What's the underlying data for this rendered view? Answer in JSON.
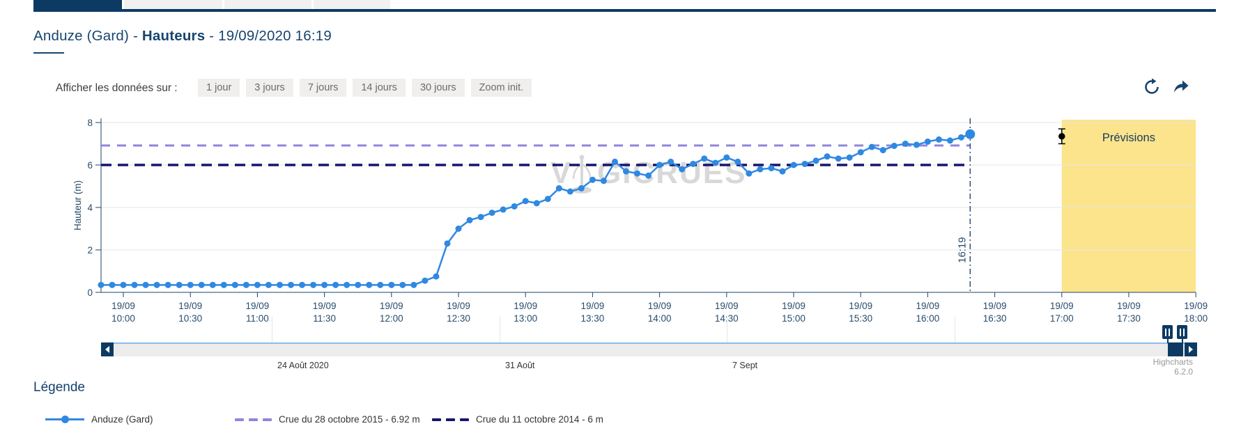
{
  "header": {
    "title_prefix": "Anduze (Gard) - ",
    "title_bold": "Hauteurs",
    "title_suffix": " - 19/09/2020 16:19"
  },
  "controls": {
    "label": "Afficher les données sur :",
    "buttons": [
      "1 jour",
      "3 jours",
      "7 jours",
      "14 jours",
      "30 jours",
      "Zoom init."
    ]
  },
  "chart_data": {
    "type": "line",
    "title": "",
    "ylabel": "Hauteur (m)",
    "ylim": [
      0,
      8
    ],
    "yticks": [
      0,
      2,
      4,
      6,
      8
    ],
    "grid": true,
    "xticks": [
      {
        "d": "19/09",
        "t": "10:00"
      },
      {
        "d": "19/09",
        "t": "10:30"
      },
      {
        "d": "19/09",
        "t": "11:00"
      },
      {
        "d": "19/09",
        "t": "11:30"
      },
      {
        "d": "19/09",
        "t": "12:00"
      },
      {
        "d": "19/09",
        "t": "12:30"
      },
      {
        "d": "19/09",
        "t": "13:00"
      },
      {
        "d": "19/09",
        "t": "13:30"
      },
      {
        "d": "19/09",
        "t": "14:00"
      },
      {
        "d": "19/09",
        "t": "14:30"
      },
      {
        "d": "19/09",
        "t": "15:00"
      },
      {
        "d": "19/09",
        "t": "15:30"
      },
      {
        "d": "19/09",
        "t": "16:00"
      },
      {
        "d": "19/09",
        "t": "16:30"
      },
      {
        "d": "19/09",
        "t": "17:00"
      },
      {
        "d": "19/09",
        "t": "17:30"
      },
      {
        "d": "19/09",
        "t": "18:00"
      }
    ],
    "series": [
      {
        "name": "Anduze (Gard)",
        "color": "#2f88e2",
        "points": [
          [
            "09:50",
            0.35
          ],
          [
            "09:55",
            0.35
          ],
          [
            "10:00",
            0.35
          ],
          [
            "10:05",
            0.35
          ],
          [
            "10:10",
            0.35
          ],
          [
            "10:15",
            0.35
          ],
          [
            "10:20",
            0.35
          ],
          [
            "10:25",
            0.35
          ],
          [
            "10:30",
            0.35
          ],
          [
            "10:35",
            0.35
          ],
          [
            "10:40",
            0.35
          ],
          [
            "10:45",
            0.35
          ],
          [
            "10:50",
            0.35
          ],
          [
            "10:55",
            0.35
          ],
          [
            "11:00",
            0.35
          ],
          [
            "11:05",
            0.35
          ],
          [
            "11:10",
            0.35
          ],
          [
            "11:15",
            0.35
          ],
          [
            "11:20",
            0.35
          ],
          [
            "11:25",
            0.35
          ],
          [
            "11:30",
            0.35
          ],
          [
            "11:35",
            0.35
          ],
          [
            "11:40",
            0.35
          ],
          [
            "11:45",
            0.35
          ],
          [
            "11:50",
            0.35
          ],
          [
            "11:55",
            0.35
          ],
          [
            "12:00",
            0.35
          ],
          [
            "12:05",
            0.35
          ],
          [
            "12:10",
            0.35
          ],
          [
            "12:15",
            0.55
          ],
          [
            "12:20",
            0.75
          ],
          [
            "12:25",
            2.3
          ],
          [
            "12:30",
            3.0
          ],
          [
            "12:35",
            3.4
          ],
          [
            "12:40",
            3.55
          ],
          [
            "12:45",
            3.75
          ],
          [
            "12:50",
            3.9
          ],
          [
            "12:55",
            4.05
          ],
          [
            "13:00",
            4.3
          ],
          [
            "13:05",
            4.2
          ],
          [
            "13:10",
            4.4
          ],
          [
            "13:15",
            4.9
          ],
          [
            "13:20",
            4.75
          ],
          [
            "13:25",
            4.9
          ],
          [
            "13:30",
            5.3
          ],
          [
            "13:35",
            5.25
          ],
          [
            "13:40",
            6.15
          ],
          [
            "13:45",
            5.7
          ],
          [
            "13:50",
            5.6
          ],
          [
            "13:55",
            5.5
          ],
          [
            "14:00",
            6.0
          ],
          [
            "14:05",
            6.15
          ],
          [
            "14:10",
            5.8
          ],
          [
            "14:15",
            6.05
          ],
          [
            "14:20",
            6.3
          ],
          [
            "14:25",
            6.1
          ],
          [
            "14:30",
            6.35
          ],
          [
            "14:35",
            6.15
          ],
          [
            "14:40",
            5.6
          ],
          [
            "14:45",
            5.8
          ],
          [
            "14:50",
            5.85
          ],
          [
            "14:55",
            5.7
          ],
          [
            "15:00",
            6.0
          ],
          [
            "15:05",
            6.05
          ],
          [
            "15:10",
            6.2
          ],
          [
            "15:15",
            6.4
          ],
          [
            "15:20",
            6.3
          ],
          [
            "15:25",
            6.35
          ],
          [
            "15:30",
            6.6
          ],
          [
            "15:35",
            6.85
          ],
          [
            "15:40",
            6.7
          ],
          [
            "15:45",
            6.9
          ],
          [
            "15:50",
            7.0
          ],
          [
            "15:55",
            6.95
          ],
          [
            "16:00",
            7.1
          ],
          [
            "16:05",
            7.2
          ],
          [
            "16:10",
            7.15
          ],
          [
            "16:15",
            7.3
          ],
          [
            "16:19",
            7.45
          ]
        ]
      }
    ],
    "thresholds": [
      {
        "label": "Crue du 28 octobre 2015 - 6.92 m",
        "value": 6.92,
        "color": "#8f85dc"
      },
      {
        "label": "Crue du 11 octobre 2014 - 6 m",
        "value": 6.0,
        "color": "#15156e"
      }
    ],
    "now": {
      "time": "16:19",
      "label": "16:19"
    },
    "forecast": {
      "label": "Prévisions",
      "zone_start": "17:00",
      "zone_end": "18:00",
      "zone_color": "#fbe48c",
      "point": {
        "time": "17:00",
        "value": 7.35,
        "error": 0.35
      }
    },
    "watermark": {
      "left": "V",
      "right": "GICRUES"
    },
    "credit": "Highcharts 6.2.0",
    "navigator": {
      "labels": [
        "24 Août 2020",
        "31 Août",
        "7 Sept"
      ]
    }
  },
  "legend": {
    "heading": "Légende",
    "items": [
      {
        "label": "Anduze (Gard)",
        "color": "#2f88e2"
      },
      {
        "label": "Crue du 28 octobre 2015 - 6.92 m",
        "color": "#8f85dc"
      },
      {
        "label": "Crue du 11 octobre 2014 - 6 m",
        "color": "#15156e"
      }
    ]
  }
}
